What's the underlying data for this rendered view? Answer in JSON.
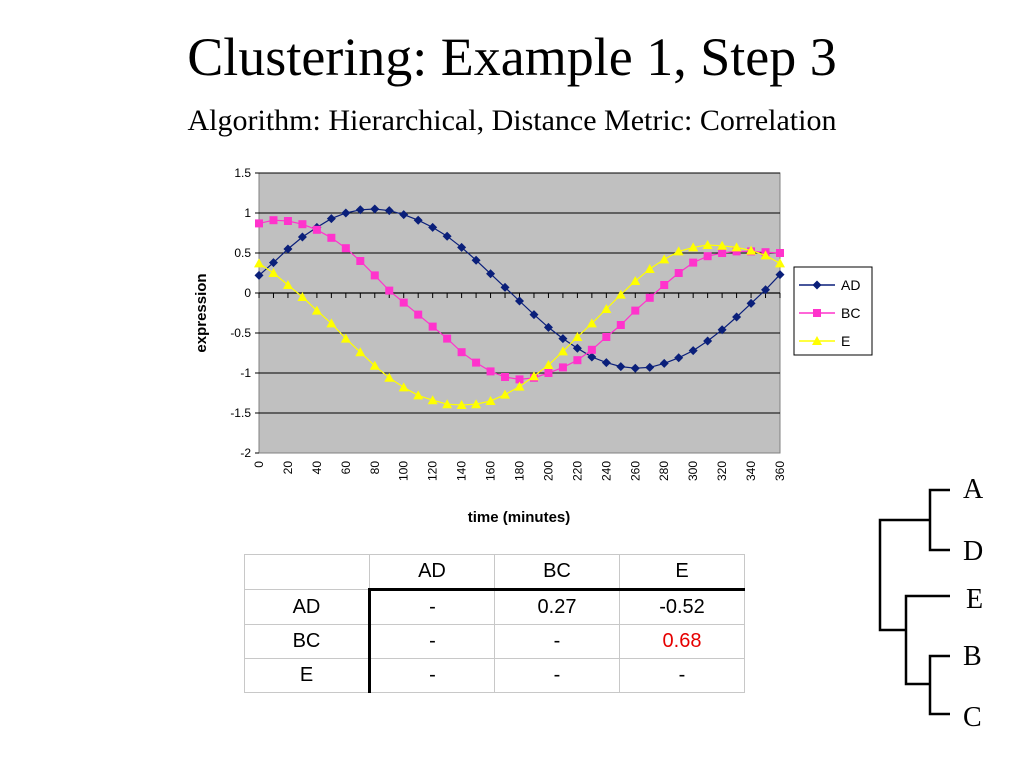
{
  "slide": {
    "title": "Clustering: Example 1, Step 3",
    "subtitle": "Algorithm: Hierarchical, Distance Metric: Correlation"
  },
  "colors": {
    "AD": "#0a1f7a",
    "BC": "#ff33cc",
    "E": "#ffff00",
    "plot_bg": "#c0c0c0",
    "highlight": "#e60000"
  },
  "chart_data": {
    "type": "line",
    "xlabel": "time (minutes)",
    "ylabel": "expression",
    "ylim": [
      -2,
      1.5
    ],
    "yticks": [
      1.5,
      1,
      0.5,
      0,
      -0.5,
      -1,
      -1.5,
      -2
    ],
    "ytick_labels": [
      "1.5",
      "1",
      "0.5",
      "0",
      "-0.5",
      "-1",
      "-1.5",
      "-2"
    ],
    "xlim": [
      0,
      360
    ],
    "xtick_labels": [
      "0",
      "20",
      "40",
      "60",
      "80",
      "100",
      "120",
      "140",
      "160",
      "180",
      "200",
      "220",
      "240",
      "260",
      "280",
      "300",
      "320",
      "340",
      "360"
    ],
    "x": [
      0,
      10,
      20,
      30,
      40,
      50,
      60,
      70,
      80,
      90,
      100,
      110,
      120,
      130,
      140,
      150,
      160,
      170,
      180,
      190,
      200,
      210,
      220,
      230,
      240,
      250,
      260,
      270,
      280,
      290,
      300,
      310,
      320,
      330,
      340,
      350,
      360
    ],
    "legend_position": "right",
    "grid": true,
    "series": [
      {
        "name": "AD",
        "marker": "diamond",
        "values": [
          0.22,
          0.38,
          0.55,
          0.7,
          0.82,
          0.93,
          1.0,
          1.04,
          1.05,
          1.03,
          0.98,
          0.91,
          0.82,
          0.71,
          0.57,
          0.41,
          0.24,
          0.07,
          -0.1,
          -0.27,
          -0.43,
          -0.57,
          -0.69,
          -0.8,
          -0.87,
          -0.92,
          -0.94,
          -0.93,
          -0.88,
          -0.81,
          -0.72,
          -0.6,
          -0.46,
          -0.3,
          -0.13,
          0.04,
          0.23
        ]
      },
      {
        "name": "BC",
        "marker": "square",
        "values": [
          0.87,
          0.91,
          0.9,
          0.86,
          0.79,
          0.69,
          0.56,
          0.4,
          0.22,
          0.03,
          -0.12,
          -0.27,
          -0.42,
          -0.57,
          -0.74,
          -0.87,
          -0.98,
          -1.05,
          -1.08,
          -1.06,
          -1.0,
          -0.93,
          -0.84,
          -0.71,
          -0.55,
          -0.4,
          -0.22,
          -0.06,
          0.1,
          0.25,
          0.38,
          0.46,
          0.5,
          0.52,
          0.52,
          0.51,
          0.5
        ]
      },
      {
        "name": "E",
        "marker": "triangle",
        "values": [
          0.37,
          0.25,
          0.1,
          -0.05,
          -0.22,
          -0.38,
          -0.57,
          -0.74,
          -0.91,
          -1.06,
          -1.18,
          -1.28,
          -1.34,
          -1.39,
          -1.4,
          -1.39,
          -1.35,
          -1.27,
          -1.17,
          -1.04,
          -0.9,
          -0.73,
          -0.55,
          -0.38,
          -0.2,
          -0.02,
          0.15,
          0.3,
          0.42,
          0.52,
          0.57,
          0.6,
          0.59,
          0.57,
          0.53,
          0.47,
          0.37
        ]
      }
    ]
  },
  "matrix": {
    "columns": [
      "AD",
      "BC",
      "E"
    ],
    "rows": [
      {
        "label": "AD",
        "cells": [
          "-",
          "0.27",
          "-0.52"
        ]
      },
      {
        "label": "BC",
        "cells": [
          "-",
          "-",
          "0.68"
        ]
      },
      {
        "label": "E",
        "cells": [
          "-",
          "-",
          "-"
        ]
      }
    ],
    "highlighted_value": "0.68"
  },
  "dendrogram": {
    "leaves": [
      "A",
      "D",
      "E",
      "B",
      "C"
    ]
  }
}
